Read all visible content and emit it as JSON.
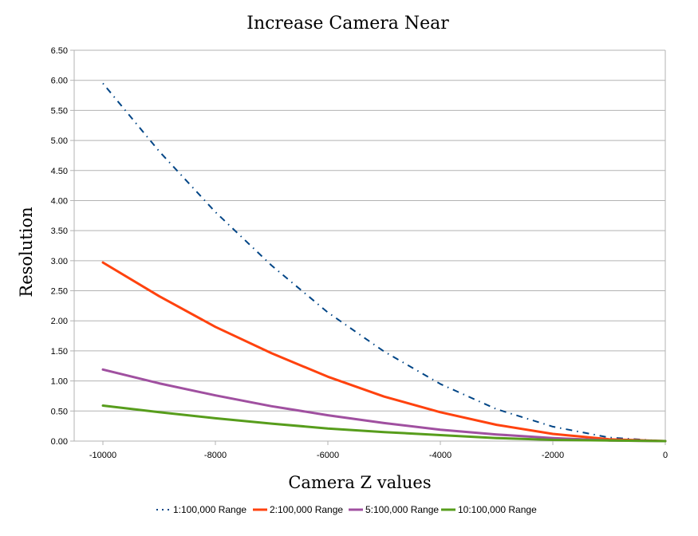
{
  "chart_data": {
    "type": "line",
    "title": "Increase Camera Near",
    "xlabel": "Camera Z values",
    "ylabel": "Resolution",
    "xlim": [
      -10000,
      0
    ],
    "ylim": [
      0,
      6.5
    ],
    "x_ticks": [
      "-10000",
      "-8000",
      "-6000",
      "-4000",
      "-2000",
      "0"
    ],
    "y_ticks": [
      "0.00",
      "0.50",
      "1.00",
      "1.50",
      "2.00",
      "2.50",
      "3.00",
      "3.50",
      "4.00",
      "4.50",
      "5.00",
      "5.50",
      "6.00",
      "6.50"
    ],
    "grid": true,
    "legend_position": "bottom",
    "x": [
      -10000,
      -9000,
      -8000,
      -7000,
      -6000,
      -5000,
      -4000,
      -3000,
      -2000,
      -1000,
      0
    ],
    "series": [
      {
        "name": "1:100,000 Range",
        "color": "#004586",
        "style": "dash-dot",
        "values": [
          5.95,
          4.82,
          3.81,
          2.92,
          2.14,
          1.49,
          0.95,
          0.53,
          0.24,
          0.06,
          0.0
        ]
      },
      {
        "name": "2:100,000 Range",
        "color": "#ff420e",
        "style": "solid",
        "values": [
          2.97,
          2.41,
          1.9,
          1.46,
          1.07,
          0.74,
          0.48,
          0.27,
          0.12,
          0.03,
          0.0
        ]
      },
      {
        "name": "5:100,000 Range",
        "color": "#a050a0",
        "style": "solid",
        "values": [
          1.19,
          0.96,
          0.76,
          0.58,
          0.43,
          0.3,
          0.19,
          0.11,
          0.05,
          0.01,
          0.0
        ]
      },
      {
        "name": "10:100,000 Range",
        "color": "#579d1c",
        "style": "solid",
        "values": [
          0.59,
          0.48,
          0.38,
          0.29,
          0.21,
          0.15,
          0.1,
          0.05,
          0.02,
          0.01,
          0.0
        ]
      }
    ]
  }
}
